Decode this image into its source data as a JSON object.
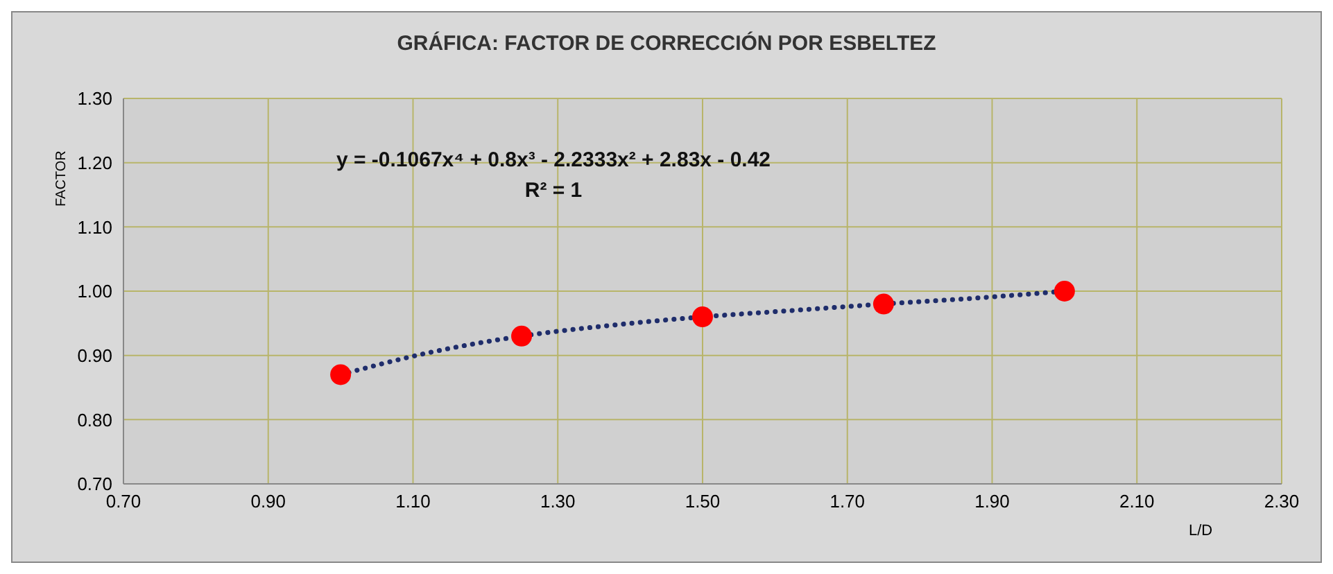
{
  "chart_data": {
    "type": "scatter",
    "title": "GRÁFICA: FACTOR DE CORRECCIÓN POR ESBELTEZ",
    "xlabel": "L/D",
    "ylabel": "FACTOR",
    "annotations": [
      "y = -0.1067x⁴ + 0.8x³ - 2.2333x² + 2.83x - 0.42",
      "R² = 1"
    ],
    "series": [
      {
        "type": "scatter",
        "color": "#ff0000",
        "marker": "circle",
        "x": [
          1.0,
          1.25,
          1.5,
          1.75,
          2.0
        ],
        "values": [
          0.87,
          0.93,
          0.96,
          0.98,
          1.0
        ]
      },
      {
        "type": "line",
        "color": "#1f2d6b",
        "line_style": "dotted",
        "marker": "none",
        "x": [
          1.0,
          1.125,
          1.25,
          1.375,
          1.5,
          1.625,
          1.75,
          1.875,
          2.0
        ],
        "values": [
          0.87,
          0.905,
          0.93,
          0.947,
          0.96,
          0.97,
          0.98,
          0.989,
          1.0
        ]
      }
    ],
    "xlim": [
      0.7,
      2.3
    ],
    "xticks": [
      {
        "value": 0.7,
        "label": "0.70"
      },
      {
        "value": 0.9,
        "label": "0.90"
      },
      {
        "value": 1.1,
        "label": "1.10"
      },
      {
        "value": 1.3,
        "label": "1.30"
      },
      {
        "value": 1.5,
        "label": "1.50"
      },
      {
        "value": 1.7,
        "label": "1.70"
      },
      {
        "value": 1.9,
        "label": "1.90"
      },
      {
        "value": 2.1,
        "label": "2.10"
      },
      {
        "value": 2.3,
        "label": "2.30"
      }
    ],
    "ylim": [
      0.7,
      1.3
    ],
    "yticks": [
      {
        "value": 0.7,
        "label": "0.70"
      },
      {
        "value": 0.8,
        "label": "0.80"
      },
      {
        "value": 0.9,
        "label": "0.90"
      },
      {
        "value": 1.0,
        "label": "1.00"
      },
      {
        "value": 1.1,
        "label": "1.10"
      },
      {
        "value": 1.2,
        "label": "1.20"
      },
      {
        "value": 1.3,
        "label": "1.30"
      }
    ],
    "grid": true
  }
}
